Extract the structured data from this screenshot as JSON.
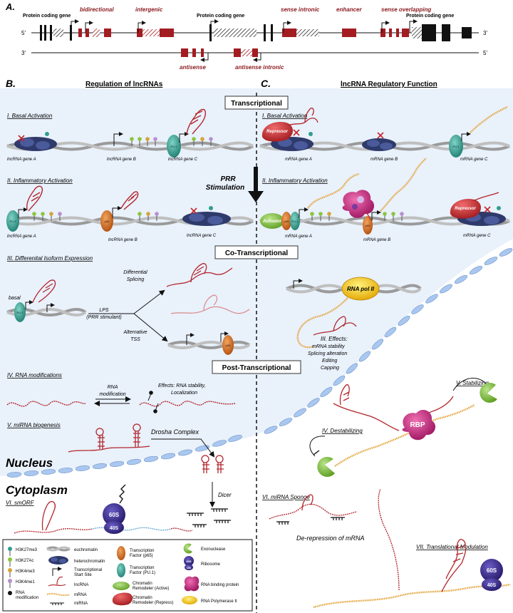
{
  "panels": {
    "a": "A.",
    "b": "B.",
    "c": "C."
  },
  "gene_map": {
    "strand_top_left": "5'",
    "strand_top_right": "3'",
    "strand_bottom_left": "3'",
    "strand_bottom_right": "5'",
    "labels": {
      "protein_coding_left": "Protein coding gene",
      "bidirectional": "bidirectional",
      "intergenic": "intergenic",
      "protein_coding_mid": "Protein coding gene",
      "sense_intronic": "sense intronic",
      "enhancer": "enhancer",
      "sense_overlapping": "sense overlapping",
      "protein_coding_right": "Protein coding gene",
      "antisense": "antisense",
      "antisense_intronic": "antisense intronic"
    }
  },
  "headings": {
    "regulation": "Regulation of lncRNAs",
    "function": "lncRNA Regulatory Function",
    "transcriptional": "Transcriptional",
    "co_transcriptional": "Co-Transcriptional",
    "post_transcriptional": "Post-Transcriptional",
    "prr": "PRR",
    "stimulation": "Stimulation"
  },
  "left": {
    "basal": "I. Basal Activation",
    "gene_a": "lncRNA gene A",
    "gene_b": "lncRNA gene B",
    "gene_c": "lncRNA gene C",
    "inflammatory": "II. Inflammatory Activation",
    "gene_a2": "lncRNA gene A",
    "gene_b2": "lncRNA gene B",
    "gene_c2": "lncRNA gene C",
    "isoform": "III. Differenital Isoform Expression",
    "basal_word": "basal",
    "diff_splicing_1": "Differential",
    "diff_splicing_2": "Splicing",
    "lps": "LPS",
    "lps_sub": "(PRR stimulant)",
    "alt_tss_1": "Alternative",
    "alt_tss_2": "TSS",
    "rna_mod": "IV. RNA modifications",
    "rna_mod_arrow_1": "RNA",
    "rna_mod_arrow_2": "modification",
    "effects_1": "Effects: RNA stability,",
    "effects_2": "Localization",
    "mirna": "V. miRNA biogenesis",
    "drosha": "Drosha Complex",
    "dicer": "Dicer",
    "nucleus": "Nucleus",
    "cytoplasm": "Cytoplasm",
    "smorf": "VI. smORF",
    "ribo_60s": "60S",
    "ribo_40s": "40S"
  },
  "right": {
    "basal": "I. Basal Activation",
    "repressor": "Repressor",
    "mrna_a": "mRNA gene A",
    "mrna_b": "mRNA gene B",
    "mrna_c": "mRNA gene C",
    "inflammatory": "II. Inflammatory Activation",
    "activator": "Activator",
    "repressor2": "Repressor",
    "mrna_a2": "mRNA gene A",
    "mrna_b2": "mRNA gene B",
    "mrna_c2": "mRNA gene C",
    "pol2": "RNA pol II",
    "effects_title": "III. Effects:",
    "effects_1": "mRNA stability",
    "effects_2": "Splicing alteration",
    "effects_3": "Editing",
    "effects_4": "Capping",
    "stabilizing": "V. Stabilizing",
    "destabilizing": "IV. Destabilizing",
    "rbp": "RBP",
    "sponge": "VI. miRNA Sponge",
    "derepression": "De-repression of mRNA",
    "translational": "VII. Translational Modulation",
    "ribo_60s": "60S",
    "ribo_40s": "40S"
  },
  "legend": {
    "h3k27me3": "H3K27me3",
    "h3k27ac": "H3K27Ac",
    "h3k4me3": "H3K4me3",
    "h3k4me1": "H3K4me1",
    "rna_mod_1": "RNA",
    "rna_mod_2": "modification",
    "euchromatin": "euchromatin",
    "heterochromatin": "heterochromatin",
    "tss_1": "Transcriptional",
    "tss_2": "Start Site",
    "lncrna": "lncRNA",
    "mrna": "mRNA",
    "mirna": "miRNA",
    "tf_p65_1": "Transcription",
    "tf_p65_2": "Factor (p65)",
    "tf_pu1_1": "Transcription",
    "tf_pu1_2": "Factor (PU.1)",
    "cr_active_1": "Chromatin",
    "cr_active_2": "Remodeler (Active)",
    "cr_repress_1": "Chromatin",
    "cr_repress_2": "Remodeler (Repress)",
    "exonuclease": "Exonuclease",
    "ribosome": "Ribosome",
    "rbp": "RNA binding protein",
    "pol2": "RNA Polymerase II",
    "ribo_60s": "60S",
    "ribo_40s": "40S"
  },
  "tf_tags": {
    "pu1": "PU.1",
    "p65": "p65"
  },
  "colors": {
    "background_blue": "#e9f1fb",
    "exon_red": "#a31c22",
    "lncrna_red": "#b3262c",
    "mrna_orange": "#e3a43a",
    "pu1_teal": "#2f9e8f",
    "p65_orange": "#d46a1d",
    "activator_green": "#8cc63e",
    "repressor_red": "#c6242a",
    "ribosome_purple": "#3a2a8c",
    "rbp_magenta": "#c4257a",
    "pol2_yellow": "#f0c419",
    "exonuclease_green": "#2e9e3e"
  }
}
